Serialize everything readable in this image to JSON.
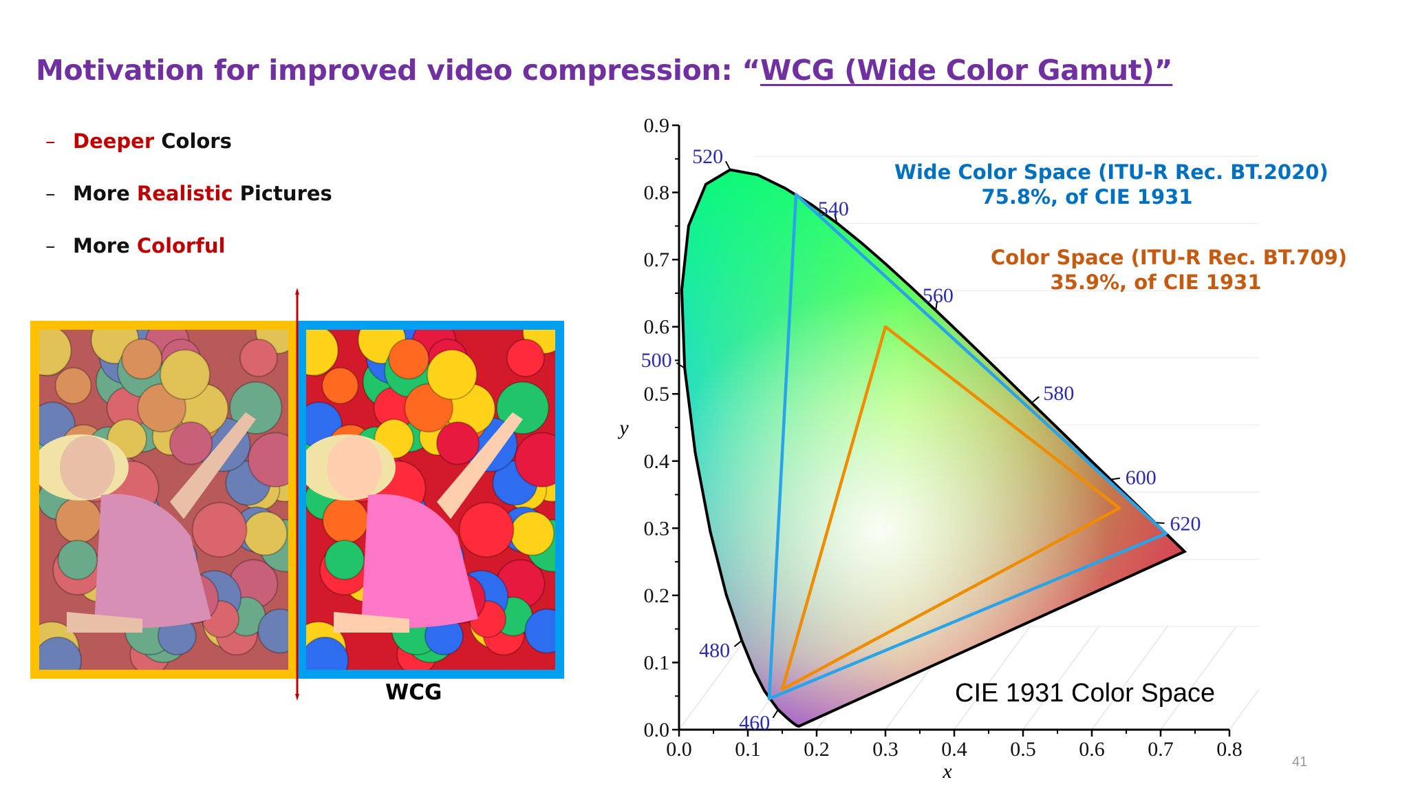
{
  "slide": {
    "title_prefix": "Motivation for improved video compression: “",
    "title_link": "WCG (Wide Color Gamut)”",
    "page_number": "41"
  },
  "bullets": [
    {
      "dash": "–",
      "before": "",
      "highlight": "Deeper",
      "after": " Colors"
    },
    {
      "dash": "–",
      "before": "More ",
      "highlight": "Realistic",
      "after": " Pictures"
    },
    {
      "dash": "–",
      "before": "More ",
      "highlight": "Colorful",
      "after": ""
    }
  ],
  "photos": {
    "left_border_color": "#ffc000",
    "right_border_color": "#00a0f0",
    "right_label": "WCG"
  },
  "annotations": {
    "bt2020_line1": "Wide Color Space (ITU-R Rec. BT.2020)",
    "bt2020_line2": "75.8%, of CIE 1931",
    "bt709_line1": "Color Space (ITU-R Rec. BT.709)",
    "bt709_line2": "35.9%, of CIE 1931",
    "caption": "CIE 1931 Color Space"
  },
  "chart_data": {
    "type": "scatter",
    "title": "CIE 1931 Color Space",
    "xlabel": "x",
    "ylabel": "y",
    "xlim": [
      0.0,
      0.8
    ],
    "ylim": [
      0.0,
      0.9
    ],
    "x_ticks": [
      "0.0",
      "0.1",
      "0.2",
      "0.3",
      "0.4",
      "0.5",
      "0.6",
      "0.7",
      "0.8"
    ],
    "y_ticks": [
      "0.0",
      "0.1",
      "0.2",
      "0.3",
      "0.4",
      "0.5",
      "0.6",
      "0.7",
      "0.8",
      "0.9"
    ],
    "spectral_locus": [
      [
        0.1741,
        0.005
      ],
      [
        0.1714,
        0.0058
      ],
      [
        0.1644,
        0.0109
      ],
      [
        0.1566,
        0.0177
      ],
      [
        0.144,
        0.0297
      ],
      [
        0.1241,
        0.0578
      ],
      [
        0.1096,
        0.0868
      ],
      [
        0.0913,
        0.1327
      ],
      [
        0.0687,
        0.2007
      ],
      [
        0.0454,
        0.295
      ],
      [
        0.0235,
        0.4127
      ],
      [
        0.0082,
        0.5384
      ],
      [
        0.0039,
        0.6548
      ],
      [
        0.0139,
        0.7502
      ],
      [
        0.0389,
        0.812
      ],
      [
        0.0743,
        0.8338
      ],
      [
        0.1142,
        0.8262
      ],
      [
        0.1547,
        0.8059
      ],
      [
        0.1929,
        0.7816
      ],
      [
        0.2296,
        0.7543
      ],
      [
        0.2658,
        0.7243
      ],
      [
        0.3016,
        0.6923
      ],
      [
        0.3373,
        0.6589
      ],
      [
        0.3731,
        0.6245
      ],
      [
        0.4087,
        0.5896
      ],
      [
        0.4441,
        0.5547
      ],
      [
        0.4788,
        0.5202
      ],
      [
        0.5125,
        0.4866
      ],
      [
        0.5448,
        0.4544
      ],
      [
        0.5752,
        0.4242
      ],
      [
        0.6029,
        0.3965
      ],
      [
        0.627,
        0.3725
      ],
      [
        0.6482,
        0.3514
      ],
      [
        0.6658,
        0.334
      ],
      [
        0.6801,
        0.3197
      ],
      [
        0.6915,
        0.3083
      ],
      [
        0.7006,
        0.2993
      ],
      [
        0.7079,
        0.292
      ],
      [
        0.714,
        0.2859
      ],
      [
        0.719,
        0.2809
      ],
      [
        0.723,
        0.277
      ],
      [
        0.726,
        0.274
      ],
      [
        0.7283,
        0.2717
      ],
      [
        0.73,
        0.27
      ],
      [
        0.7347,
        0.2653
      ]
    ],
    "wavelength_labels": [
      {
        "nm": "460",
        "x": 0.144,
        "y": 0.0297
      },
      {
        "nm": "480",
        "x": 0.0913,
        "y": 0.1327
      },
      {
        "nm": "500",
        "x": 0.0082,
        "y": 0.5384
      },
      {
        "nm": "520",
        "x": 0.0743,
        "y": 0.8338
      },
      {
        "nm": "540",
        "x": 0.2296,
        "y": 0.7543
      },
      {
        "nm": "560",
        "x": 0.3731,
        "y": 0.6245
      },
      {
        "nm": "580",
        "x": 0.5125,
        "y": 0.4866
      },
      {
        "nm": "600",
        "x": 0.627,
        "y": 0.3725
      },
      {
        "nm": "620",
        "x": 0.6915,
        "y": 0.3083
      }
    ],
    "series": [
      {
        "name": "Wide Color Space (ITU-R Rec. BT.2020)",
        "color": "#2aa4e8",
        "points": [
          [
            0.708,
            0.292
          ],
          [
            0.17,
            0.797
          ],
          [
            0.131,
            0.046
          ]
        ]
      },
      {
        "name": "Color Space (ITU-R Rec. BT.709)",
        "color": "#f08c00",
        "points": [
          [
            0.64,
            0.33
          ],
          [
            0.3,
            0.6
          ],
          [
            0.15,
            0.06
          ]
        ]
      }
    ]
  }
}
